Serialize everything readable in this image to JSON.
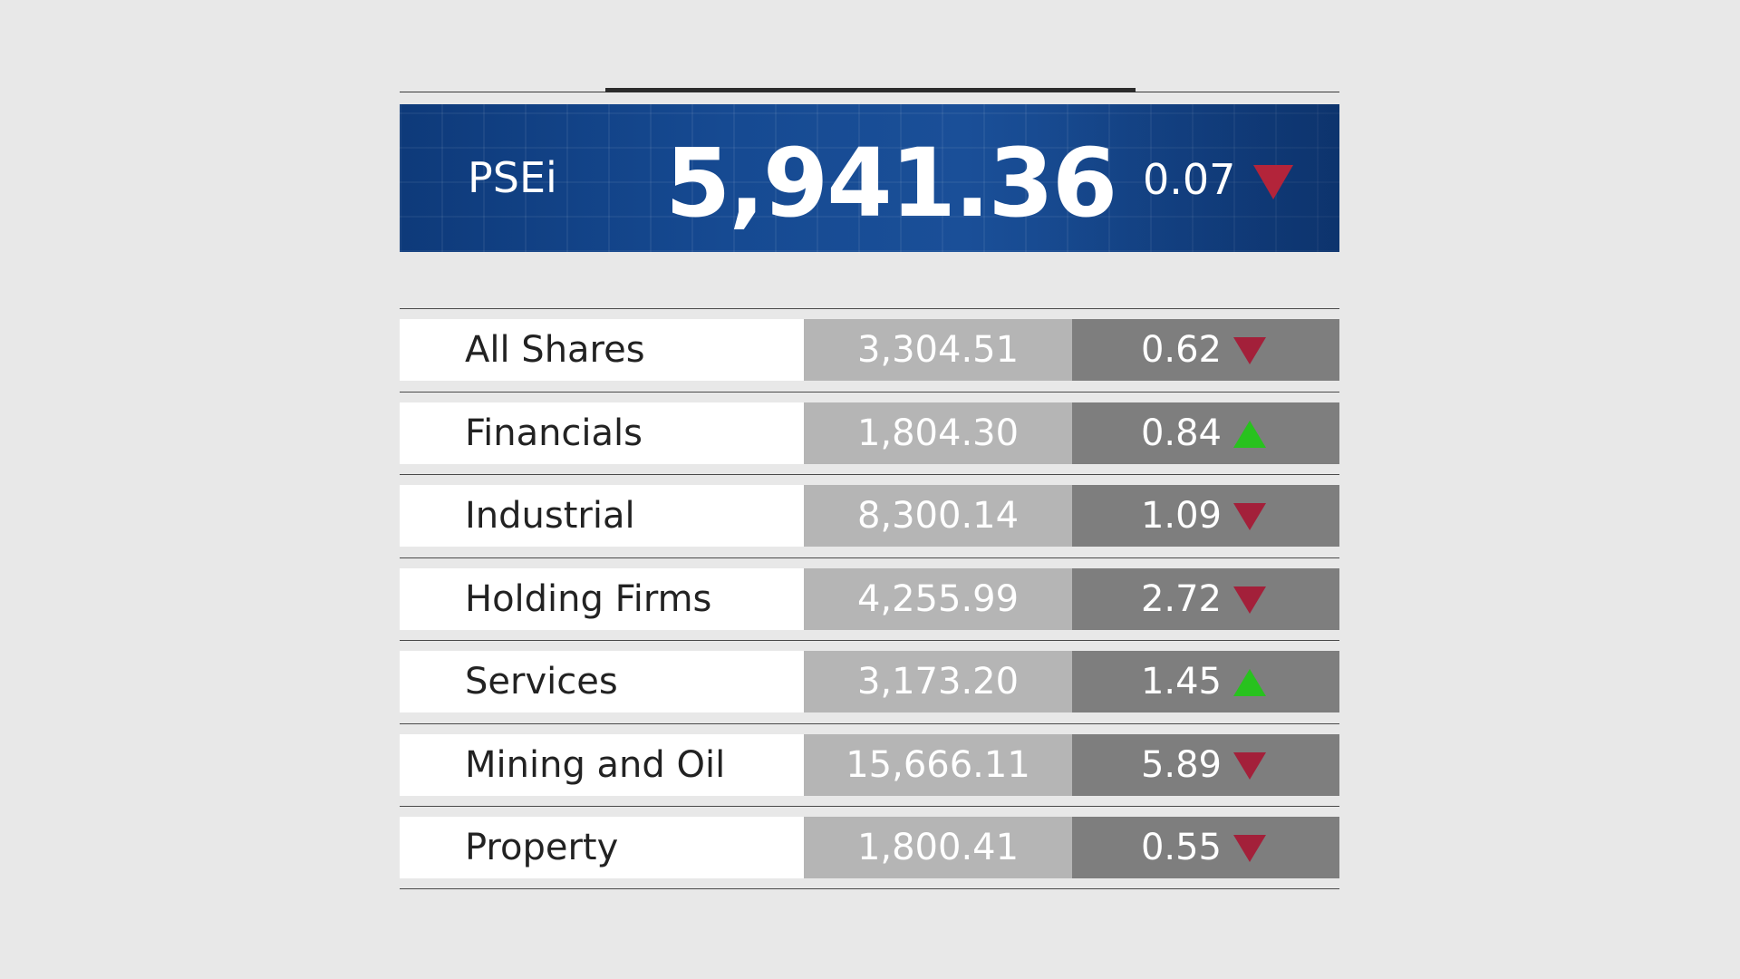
{
  "colors": {
    "background": "#e8e8e8",
    "hero_blue": "#164a92",
    "down_red": "#a3203a",
    "up_green": "#28c21e",
    "value_cell": "#b5b5b5",
    "change_cell": "#7e7e7e"
  },
  "hero": {
    "label": "PSEi",
    "value": "5,941.36",
    "change": "0.07",
    "direction": "down"
  },
  "rows": [
    {
      "name": "All Shares",
      "value": "3,304.51",
      "change": "0.62",
      "direction": "down"
    },
    {
      "name": "Financials",
      "value": "1,804.30",
      "change": "0.84",
      "direction": "up"
    },
    {
      "name": "Industrial",
      "value": "8,300.14",
      "change": "1.09",
      "direction": "down"
    },
    {
      "name": "Holding Firms",
      "value": "4,255.99",
      "change": "2.72",
      "direction": "down"
    },
    {
      "name": "Services",
      "value": "3,173.20",
      "change": "1.45",
      "direction": "up"
    },
    {
      "name": "Mining and Oil",
      "value": "15,666.11",
      "change": "5.89",
      "direction": "down"
    },
    {
      "name": "Property",
      "value": "1,800.41",
      "change": "0.55",
      "direction": "down"
    }
  ]
}
